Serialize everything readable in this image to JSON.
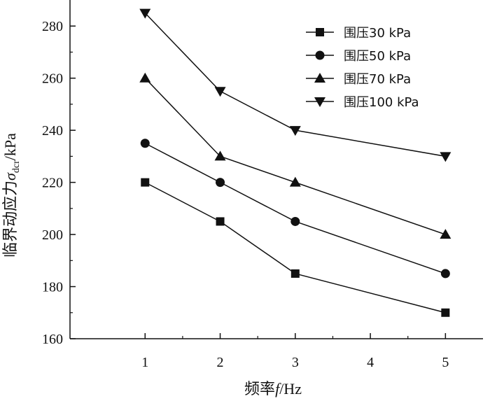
{
  "chart_data": {
    "type": "line",
    "xlabel_prefix": "频率",
    "xlabel_var": "f",
    "xlabel_unit": "/Hz",
    "ylabel_prefix": "临界动应力",
    "ylabel_var": "σ",
    "ylabel_sub": "dcr",
    "ylabel_unit": "/kPa",
    "x": [
      1,
      2,
      3,
      4,
      5
    ],
    "x_ticks": [
      "1",
      "2",
      "3",
      "4",
      "5"
    ],
    "xlim": [
      0.0,
      5.5
    ],
    "ylim": [
      160,
      290
    ],
    "y_ticks": [
      160,
      180,
      200,
      220,
      240,
      260,
      280
    ],
    "y_tick_labels": [
      "160",
      "180",
      "200",
      "220",
      "240",
      "260",
      "280"
    ],
    "grid": false,
    "legend_position": "top-right",
    "series": [
      {
        "name": "围压30 kPa",
        "marker": "square",
        "x": [
          1,
          2,
          3,
          5
        ],
        "values": [
          220,
          205,
          185,
          170
        ]
      },
      {
        "name": "围压50 kPa",
        "marker": "circle",
        "x": [
          1,
          2,
          3,
          5
        ],
        "values": [
          235,
          220,
          205,
          185
        ]
      },
      {
        "name": "围压70 kPa",
        "marker": "triangle-up",
        "x": [
          1,
          2,
          3,
          5
        ],
        "values": [
          260,
          230,
          220,
          200
        ]
      },
      {
        "name": "围压100 kPa",
        "marker": "triangle-down",
        "x": [
          1,
          2,
          3,
          5
        ],
        "values": [
          285,
          255,
          240,
          230
        ]
      }
    ],
    "colors": {
      "line": "#111111",
      "marker": "#111111"
    }
  }
}
